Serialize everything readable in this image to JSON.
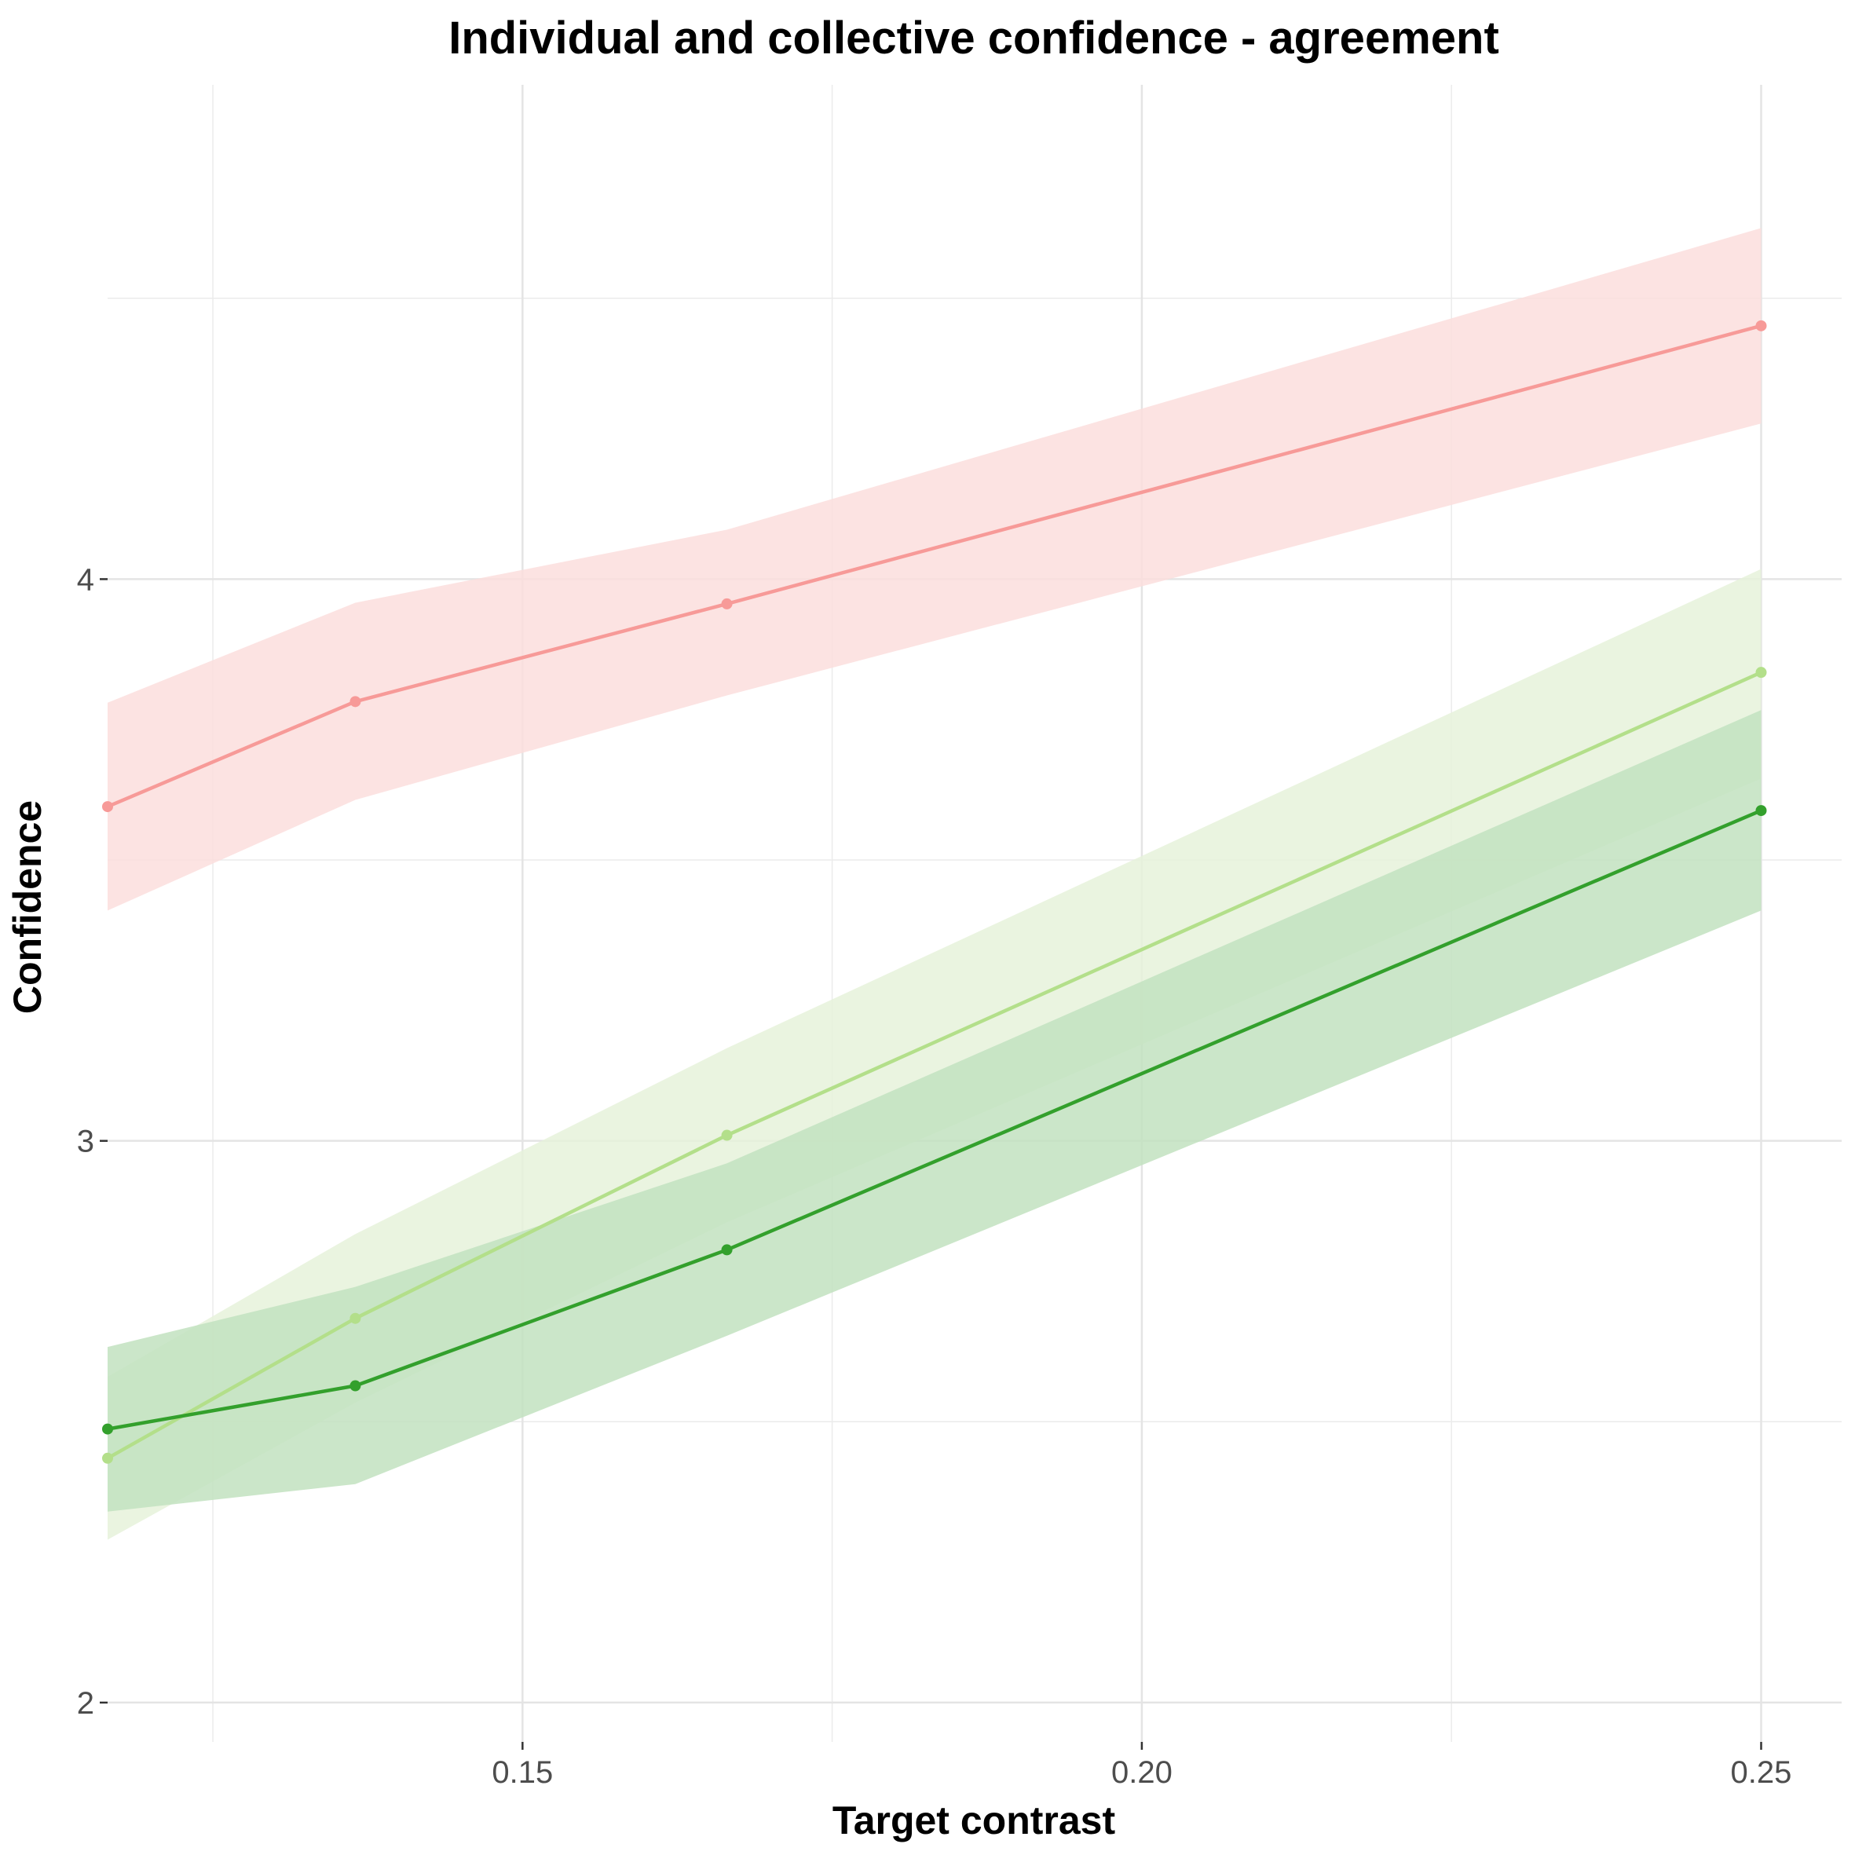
{
  "chart_data": {
    "type": "line",
    "title": "Individual and collective confidence - agreement",
    "xlabel": "Target contrast",
    "ylabel": "Confidence",
    "xlim": [
      0.1165,
      0.2565
    ],
    "ylim": [
      1.93,
      4.88
    ],
    "x_ticks": [
      0.15,
      0.2,
      0.25
    ],
    "x_tick_labels": [
      "0.15",
      "0.20",
      "0.25"
    ],
    "x_minor_ticks": [
      0.125,
      0.175,
      0.225
    ],
    "y_ticks": [
      2,
      3,
      4
    ],
    "y_tick_labels": [
      "2",
      "3",
      "4"
    ],
    "y_minor_ticks": [
      2.5,
      3.5,
      4.5
    ],
    "grid": true,
    "legend": "none",
    "series": [
      {
        "color": "#f79a98",
        "ribbon_color": "#fcdedd",
        "x": [
          0.1165,
          0.1365,
          0.1665,
          0.25
        ],
        "y": [
          3.595,
          3.782,
          3.956,
          4.451
        ],
        "lower": [
          3.41,
          3.607,
          3.793,
          4.277
        ],
        "upper": [
          3.78,
          3.958,
          4.088,
          4.625
        ]
      },
      {
        "color": "#b3df8a",
        "ribbon_color": "#e6f2da",
        "x": [
          0.1165,
          0.1365,
          0.1665,
          0.25
        ],
        "y": [
          2.435,
          2.684,
          3.01,
          3.834
        ],
        "lower": [
          2.29,
          2.534,
          2.855,
          3.645
        ],
        "upper": [
          2.58,
          2.834,
          3.165,
          4.018
        ]
      },
      {
        "color": "#33a02c",
        "ribbon_color": "#c2e2c0",
        "x": [
          0.1165,
          0.1365,
          0.1665,
          0.25
        ],
        "y": [
          2.487,
          2.564,
          2.806,
          3.588
        ],
        "lower": [
          2.34,
          2.389,
          2.653,
          3.41
        ],
        "upper": [
          2.633,
          2.74,
          2.96,
          3.767
        ]
      }
    ]
  }
}
